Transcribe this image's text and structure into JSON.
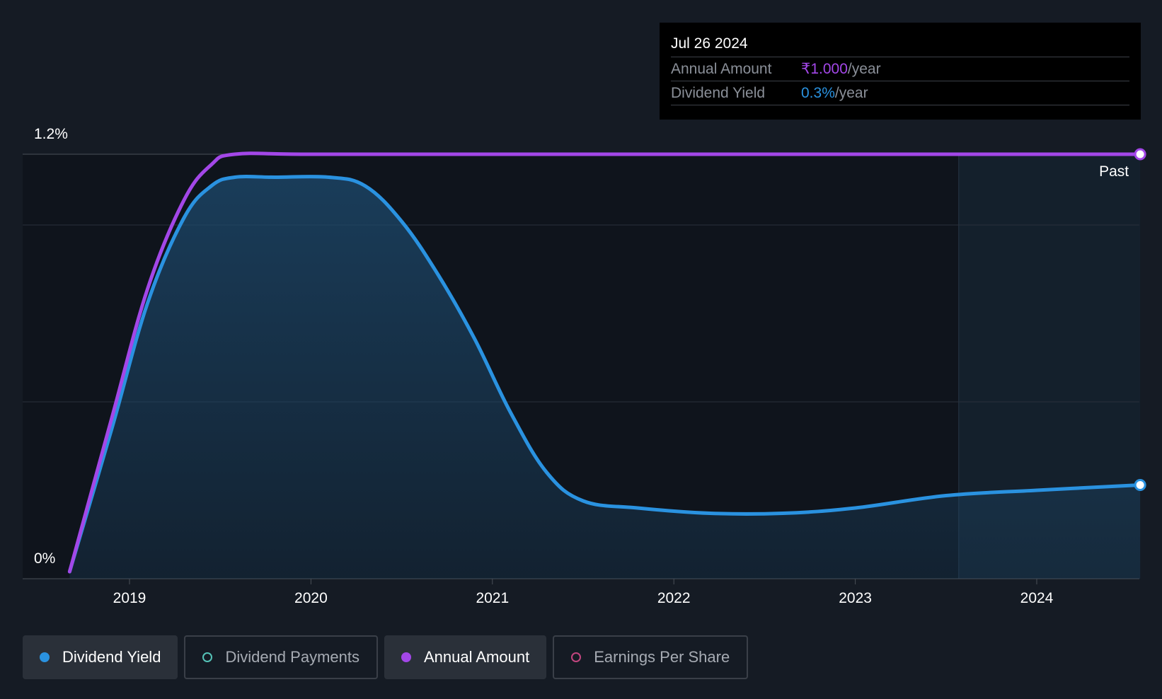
{
  "tooltip": {
    "date": "Jul 26 2024",
    "rows": [
      {
        "label": "Annual Amount",
        "value": "₹1.000",
        "suffix": "/year",
        "color": "#a347e8"
      },
      {
        "label": "Dividend Yield",
        "value": "0.3%",
        "suffix": "/year",
        "color": "#2a92e0"
      }
    ]
  },
  "legend": [
    {
      "label": "Dividend Yield",
      "color": "#2a92e0",
      "active": true,
      "icon": "filled-dot-icon"
    },
    {
      "label": "Dividend Payments",
      "color": "#55c3b8",
      "active": false,
      "icon": "hollow-dot-icon"
    },
    {
      "label": "Annual Amount",
      "color": "#a347e8",
      "active": true,
      "icon": "filled-dot-icon"
    },
    {
      "label": "Earnings Per Share",
      "color": "#c2457f",
      "active": false,
      "icon": "hollow-dot-icon"
    }
  ],
  "chart_data": {
    "type": "line",
    "x_tick_labels": [
      "2019",
      "2020",
      "2021",
      "2022",
      "2023",
      "2024"
    ],
    "y_tick_labels": [
      "1.2%",
      "0%"
    ],
    "ylim": [
      0,
      1.2
    ],
    "xlim": [
      2018.67,
      2024.57
    ],
    "region_label": "Past",
    "region_start": 2023.57,
    "series": [
      {
        "name": "Dividend Yield",
        "color": "#2a92e0",
        "x": [
          2018.67,
          2018.9,
          2019.1,
          2019.3,
          2019.45,
          2019.58,
          2019.8,
          2020.1,
          2020.3,
          2020.5,
          2020.7,
          2020.9,
          2021.1,
          2021.3,
          2021.5,
          2021.8,
          2022.2,
          2022.6,
          2023.0,
          2023.5,
          2024.0,
          2024.57
        ],
        "y": [
          0.02,
          0.42,
          0.78,
          1.02,
          1.11,
          1.135,
          1.135,
          1.135,
          1.11,
          1.01,
          0.86,
          0.68,
          0.47,
          0.3,
          0.22,
          0.2,
          0.185,
          0.185,
          0.2,
          0.235,
          0.25,
          0.265
        ]
      },
      {
        "name": "Annual Amount",
        "color": "#a347e8",
        "x": [
          2018.67,
          2018.9,
          2019.1,
          2019.3,
          2019.45,
          2019.58,
          2020.0,
          2021.0,
          2022.0,
          2023.0,
          2024.0,
          2024.57
        ],
        "y": [
          0.02,
          0.45,
          0.82,
          1.07,
          1.17,
          1.2,
          1.2,
          1.2,
          1.2,
          1.2,
          1.2,
          1.2
        ]
      }
    ]
  }
}
